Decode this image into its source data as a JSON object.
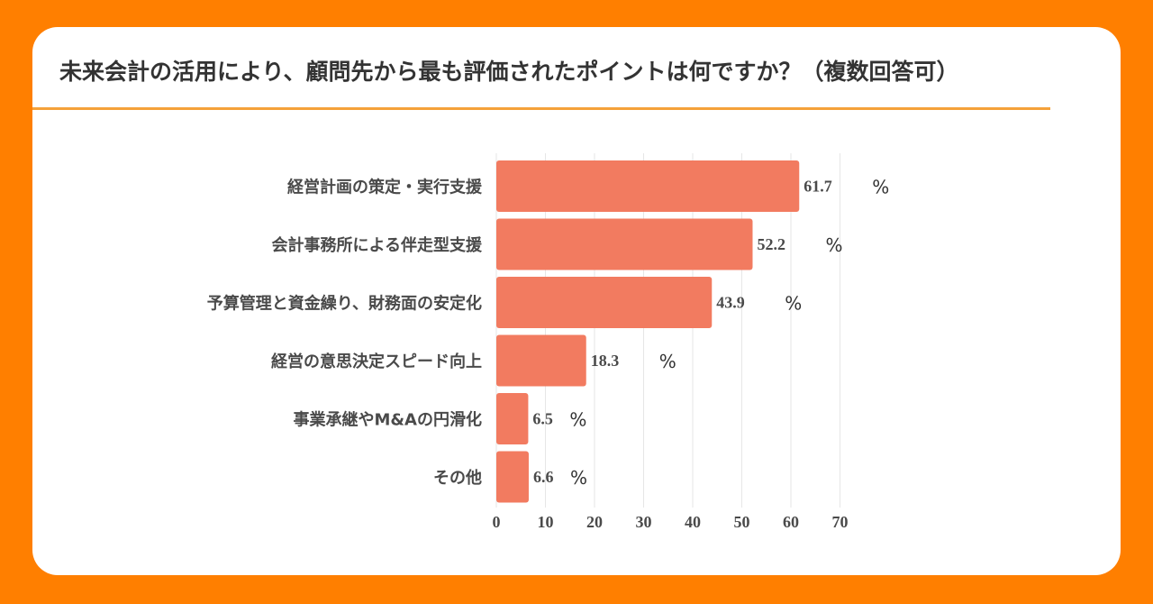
{
  "page": {
    "title": "未来会計の活用により、顧問先から最も評価されたポイントは何ですか？（複数回答可）"
  },
  "colors": {
    "background": "#FF7F00",
    "card": "#FFFFFF",
    "bar": "#F27B60",
    "title_rule": "#F5A13A",
    "grid": "#E6E6E6"
  },
  "chart_data": {
    "type": "bar",
    "orientation": "horizontal",
    "categories": [
      "経営計画の策定・実行支援",
      "会計事務所による伴走型支援",
      "予算管理と資金繰り、財務面の安定化",
      "経営の意思決定スピード向上",
      "事業承継やM&Aの円滑化",
      "その他"
    ],
    "values": [
      61.7,
      52.2,
      43.9,
      18.3,
      6.5,
      6.6
    ],
    "data_labels": [
      "61.7",
      "52.2",
      "43.9",
      "18.3",
      "6.5",
      "6.6"
    ],
    "unit_label": "%",
    "xlim": [
      0,
      70
    ],
    "x_ticks": [
      "0",
      "10",
      "20",
      "30",
      "40",
      "50",
      "60",
      "70"
    ],
    "grid": true,
    "legend": "none"
  }
}
